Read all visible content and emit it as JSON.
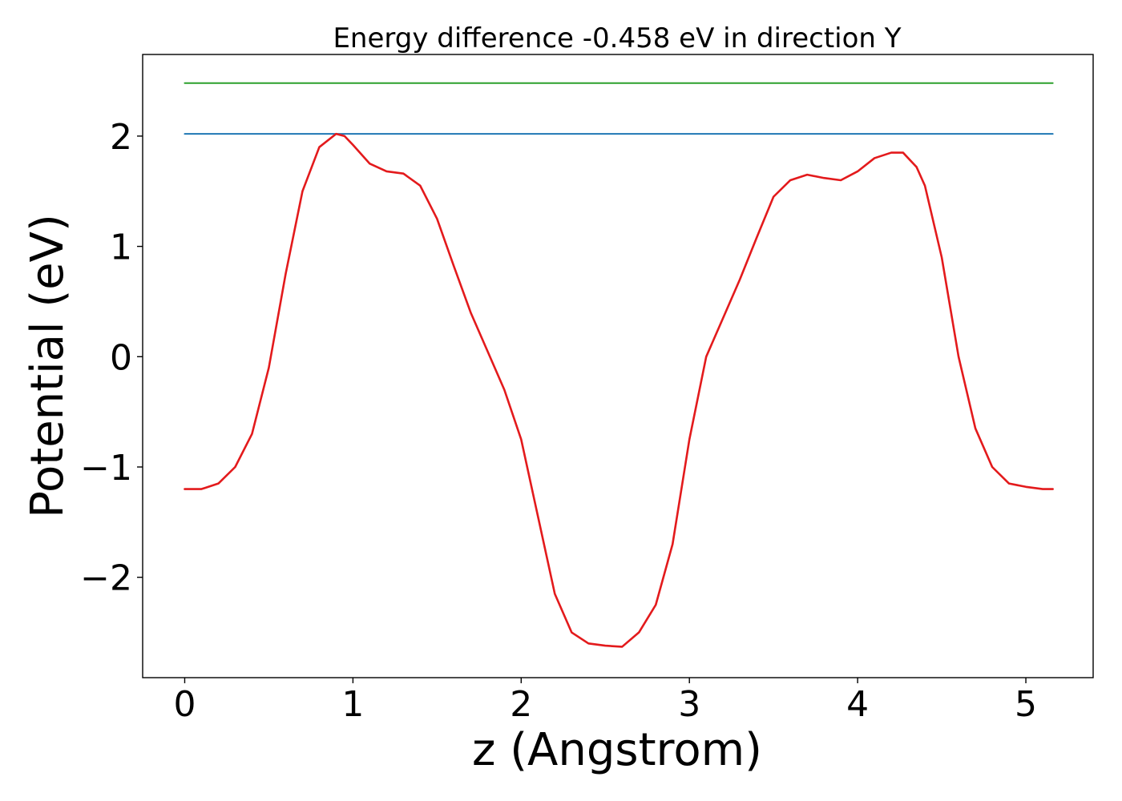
{
  "chart_data": {
    "type": "line",
    "title": "Energy difference -0.458 eV in direction Y",
    "xlabel": "z (Angstrom)",
    "ylabel": "Potential (eV)",
    "xlim": [
      -0.25,
      5.4
    ],
    "ylim": [
      -2.91,
      2.74
    ],
    "grid": false,
    "xticks": [
      0,
      1,
      2,
      3,
      4,
      5
    ],
    "xtick_labels": [
      "0",
      "1",
      "2",
      "3",
      "4",
      "5"
    ],
    "yticks": [
      -2,
      -1,
      0,
      1,
      2
    ],
    "ytick_labels": [
      "−2",
      "−1",
      "0",
      "1",
      "2"
    ],
    "series": [
      {
        "color": "#2ca02c",
        "x": [
          0,
          5.16
        ],
        "y": [
          2.48,
          2.48
        ]
      },
      {
        "color": "#1f77b4",
        "x": [
          0,
          5.16
        ],
        "y": [
          2.02,
          2.02
        ]
      },
      {
        "color": "#e31a1c",
        "x": [
          0,
          0.1,
          0.2,
          0.3,
          0.4,
          0.5,
          0.6,
          0.7,
          0.8,
          0.9,
          0.95,
          1.0,
          1.1,
          1.2,
          1.3,
          1.4,
          1.5,
          1.6,
          1.7,
          1.8,
          1.9,
          2.0,
          2.1,
          2.2,
          2.3,
          2.4,
          2.5,
          2.6,
          2.7,
          2.8,
          2.9,
          3.0,
          3.1,
          3.2,
          3.3,
          3.4,
          3.5,
          3.6,
          3.7,
          3.8,
          3.9,
          4.0,
          4.1,
          4.2,
          4.27,
          4.35,
          4.4,
          4.5,
          4.6,
          4.7,
          4.8,
          4.9,
          5.0,
          5.1,
          5.16
        ],
        "y": [
          -1.2,
          -1.2,
          -1.15,
          -1.0,
          -0.7,
          -0.1,
          0.75,
          1.5,
          1.9,
          2.02,
          2.0,
          1.92,
          1.75,
          1.68,
          1.66,
          1.55,
          1.25,
          0.82,
          0.4,
          0.05,
          -0.3,
          -0.75,
          -1.45,
          -2.15,
          -2.5,
          -2.6,
          -2.62,
          -2.63,
          -2.5,
          -2.25,
          -1.7,
          -0.75,
          0.0,
          0.35,
          0.7,
          1.08,
          1.45,
          1.6,
          1.65,
          1.62,
          1.6,
          1.68,
          1.8,
          1.85,
          1.85,
          1.72,
          1.55,
          0.9,
          0.0,
          -0.65,
          -1.0,
          -1.15,
          -1.18,
          -1.2,
          -1.2
        ]
      }
    ]
  }
}
